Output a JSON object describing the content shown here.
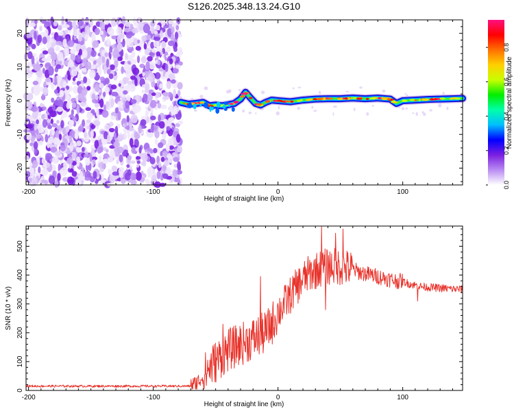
{
  "chart_data": [
    {
      "type": "heatmap",
      "title": "S126.2025.348.13.24.G10",
      "xlabel": "Height of straight line (km)",
      "ylabel": "Frequency (Hz)",
      "xlim": [
        -202,
        148
      ],
      "ylim": [
        -25,
        24
      ],
      "xticks": [
        -200,
        -100,
        0,
        100
      ],
      "xtick_labels": [
        "-200",
        "-100",
        "0",
        "100"
      ],
      "yticks": [
        -20,
        -10,
        0,
        10,
        20
      ],
      "ytick_labels": [
        "-20",
        "-10",
        "0",
        "10",
        "20"
      ],
      "noise_region_x": [
        -202,
        -78
      ],
      "ridge": {
        "x": [
          -78,
          -72,
          -66,
          -60,
          -55,
          -50,
          -45,
          -40,
          -35,
          -30,
          -26,
          -22,
          -18,
          -14,
          -10,
          -5,
          0,
          10,
          20,
          30,
          40,
          50,
          60,
          70,
          80,
          90,
          95,
          100,
          110,
          120,
          130,
          140,
          148
        ],
        "frequency": [
          -0.5,
          -1.0,
          -0.8,
          -0.5,
          -1.5,
          -1.3,
          -1.5,
          -1.2,
          -0.8,
          0.5,
          2.5,
          0.8,
          -0.8,
          -1.3,
          -0.5,
          0.2,
          0.0,
          -0.3,
          0.2,
          0.5,
          0.6,
          0.6,
          0.8,
          0.6,
          0.8,
          0.5,
          -0.8,
          0.0,
          0.2,
          0.4,
          0.5,
          0.6,
          0.7
        ]
      },
      "colorbar": {
        "label": "Normalized spectral amplitude",
        "ticks": [
          0.0,
          0.2,
          0.4,
          0.6,
          0.8
        ],
        "tick_labels": [
          "0.0",
          "0.2",
          "0.4",
          "0.6",
          "0.8"
        ],
        "colors": [
          "#ffffff",
          "#b98cf2",
          "#7a1fe0",
          "#0000ff",
          "#00bfff",
          "#00ffaa",
          "#00ee00",
          "#c8ff00",
          "#ffd000",
          "#ff7000",
          "#ff0000",
          "#ff1080"
        ]
      }
    },
    {
      "type": "line",
      "xlabel": "Height of straight line (km)",
      "ylabel": "SNR (10 * v/v)",
      "xlim": [
        -202,
        148
      ],
      "ylim": [
        0,
        570
      ],
      "xticks": [
        -200,
        -100,
        0,
        100
      ],
      "xtick_labels": [
        "-200",
        "-100",
        "0",
        "100"
      ],
      "yticks": [
        0,
        100,
        200,
        300,
        400,
        500
      ],
      "ytick_labels": [
        "0",
        "100",
        "200",
        "300",
        "400",
        "500"
      ],
      "color": "#e8322a",
      "series": [
        {
          "name": "SNR",
          "x": [
            -202,
            -180,
            -160,
            -140,
            -120,
            -100,
            -80,
            -70,
            -65,
            -60,
            -55,
            -50,
            -45,
            -40,
            -35,
            -30,
            -25,
            -20,
            -15,
            -10,
            -5,
            0,
            5,
            10,
            15,
            20,
            25,
            30,
            35,
            40,
            45,
            50,
            55,
            60,
            65,
            70,
            75,
            80,
            85,
            90,
            95,
            100,
            105,
            110,
            115,
            120,
            130,
            140,
            148
          ],
          "values": [
            15,
            15,
            15,
            15,
            15,
            15,
            15,
            15,
            25,
            50,
            80,
            100,
            120,
            140,
            150,
            160,
            170,
            180,
            190,
            200,
            230,
            270,
            300,
            330,
            360,
            385,
            405,
            415,
            425,
            430,
            430,
            428,
            425,
            420,
            410,
            405,
            400,
            395,
            390,
            385,
            380,
            378,
            370,
            365,
            360,
            358,
            355,
            352,
            350
          ]
        }
      ],
      "spikes": [
        {
          "x": 35,
          "value": 570
        },
        {
          "x": 52,
          "value": 560
        },
        {
          "x": 46,
          "value": 545
        },
        {
          "x": -14,
          "value": 395
        },
        {
          "x": -44,
          "value": 230
        },
        {
          "x": 38,
          "value": 280
        },
        {
          "x": 112,
          "value": 310
        }
      ]
    }
  ]
}
